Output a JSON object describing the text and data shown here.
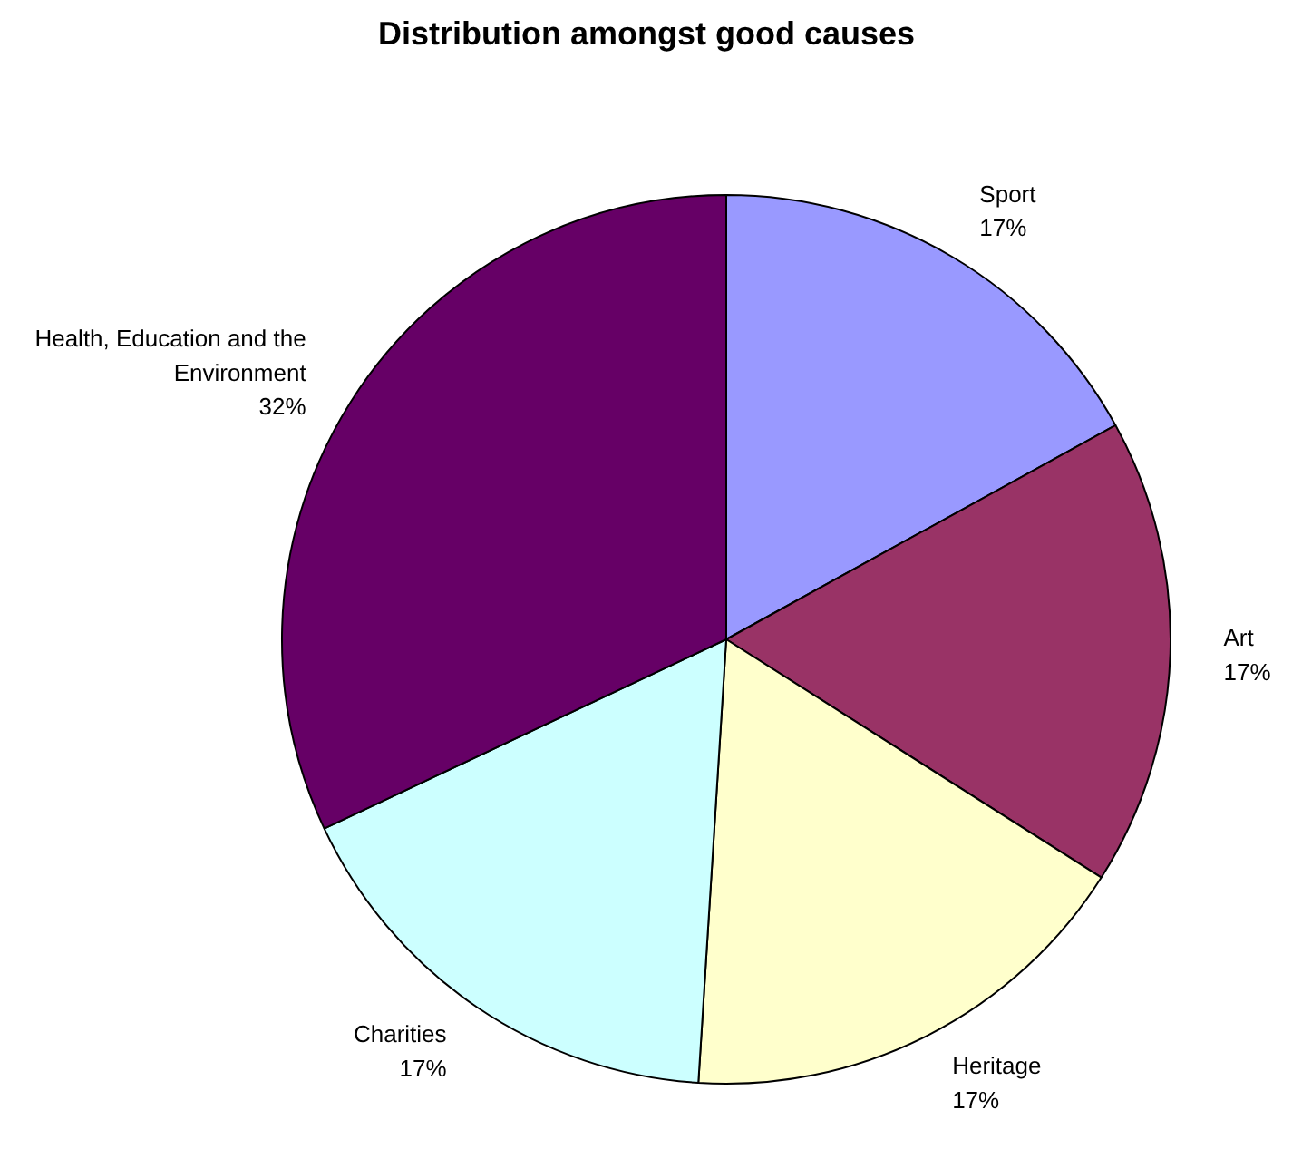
{
  "chart_data": {
    "type": "pie",
    "title": "Distribution amongst good causes",
    "categories": [
      "Sport",
      "Art",
      "Heritage",
      "Charities",
      "Health, Education and the Environment"
    ],
    "values": [
      17,
      17,
      17,
      17,
      32
    ],
    "value_labels": [
      "17%",
      "17%",
      "17%",
      "17%",
      "32%"
    ],
    "colors": [
      "#9999ff",
      "#993366",
      "#ffffcc",
      "#ccffff",
      "#660066"
    ]
  }
}
